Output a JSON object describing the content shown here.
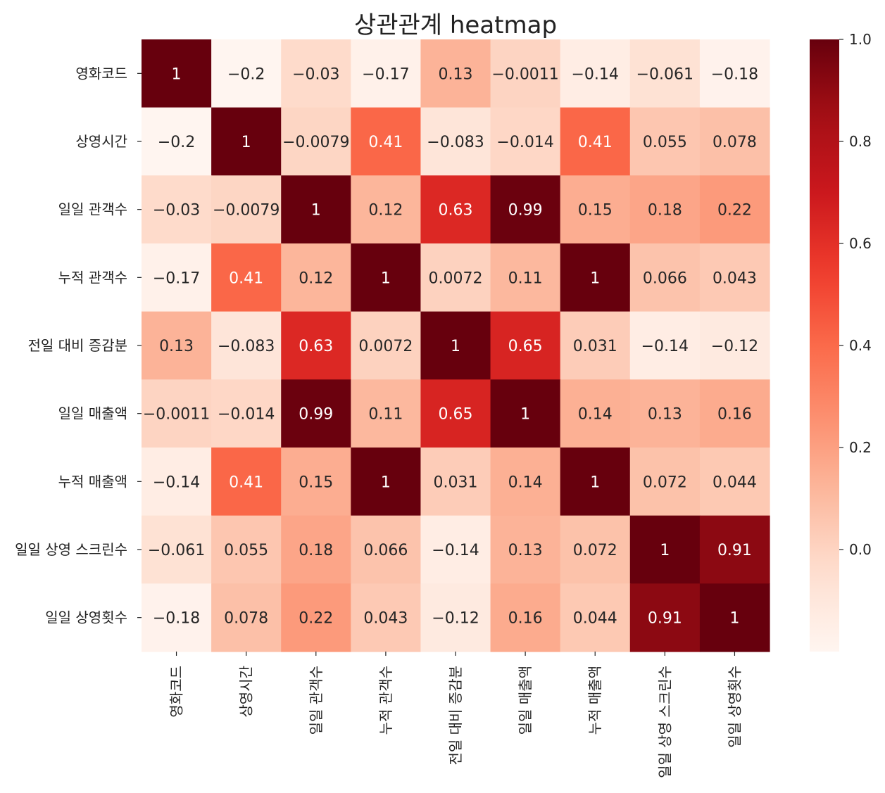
{
  "chart_data": {
    "type": "heatmap",
    "title": "상관관계 heatmap",
    "colormap": "Reds",
    "colorbar": {
      "vmin": -0.2,
      "vmax": 1.0,
      "ticks": [
        0.0,
        0.2,
        0.4,
        0.6,
        0.8,
        1.0
      ],
      "tick_labels": [
        "0.0",
        "0.2",
        "0.4",
        "0.6",
        "0.8",
        "1.0"
      ],
      "placement": "right"
    },
    "grid": false,
    "labels": [
      "영화코드",
      "상영시간",
      "일일 관객수",
      "누적 관객수",
      "전일 대비 증감분",
      "일일 매출액",
      "누적 매출액",
      "일일 상영 스크린수",
      "일일 상영횟수"
    ],
    "values": [
      [
        1,
        -0.2,
        -0.03,
        -0.17,
        0.13,
        -0.0011,
        -0.14,
        -0.061,
        -0.18
      ],
      [
        -0.2,
        1,
        -0.0079,
        0.41,
        -0.083,
        -0.014,
        0.41,
        0.055,
        0.078
      ],
      [
        -0.03,
        -0.0079,
        1,
        0.12,
        0.63,
        0.99,
        0.15,
        0.18,
        0.22
      ],
      [
        -0.17,
        0.41,
        0.12,
        1,
        0.0072,
        0.11,
        1,
        0.066,
        0.043
      ],
      [
        0.13,
        -0.083,
        0.63,
        0.0072,
        1,
        0.65,
        0.031,
        -0.14,
        -0.12
      ],
      [
        -0.0011,
        -0.014,
        0.99,
        0.11,
        0.65,
        1,
        0.14,
        0.13,
        0.16
      ],
      [
        -0.14,
        0.41,
        0.15,
        1,
        0.031,
        0.14,
        1,
        0.072,
        0.044
      ],
      [
        -0.061,
        0.055,
        0.18,
        0.066,
        -0.14,
        0.13,
        0.072,
        1,
        0.91
      ],
      [
        -0.18,
        0.078,
        0.22,
        0.043,
        -0.12,
        0.16,
        0.044,
        0.91,
        1
      ]
    ],
    "annotations": [
      [
        "1",
        "−0.2",
        "−0.03",
        "−0.17",
        "0.13",
        "−0.0011",
        "−0.14",
        "−0.061",
        "−0.18"
      ],
      [
        "−0.2",
        "1",
        "−0.0079",
        "0.41",
        "−0.083",
        "−0.014",
        "0.41",
        "0.055",
        "0.078"
      ],
      [
        "−0.03",
        "−0.0079",
        "1",
        "0.12",
        "0.63",
        "0.99",
        "0.15",
        "0.18",
        "0.22"
      ],
      [
        "−0.17",
        "0.41",
        "0.12",
        "1",
        "0.0072",
        "0.11",
        "1",
        "0.066",
        "0.043"
      ],
      [
        "0.13",
        "−0.083",
        "0.63",
        "0.0072",
        "1",
        "0.65",
        "0.031",
        "−0.14",
        "−0.12"
      ],
      [
        "−0.0011",
        "−0.014",
        "0.99",
        "0.11",
        "0.65",
        "1",
        "0.14",
        "0.13",
        "0.16"
      ],
      [
        "−0.14",
        "0.41",
        "0.15",
        "1",
        "0.031",
        "0.14",
        "1",
        "0.072",
        "0.044"
      ],
      [
        "−0.061",
        "0.055",
        "0.18",
        "0.066",
        "−0.14",
        "0.13",
        "0.072",
        "1",
        "0.91"
      ],
      [
        "−0.18",
        "0.078",
        "0.22",
        "0.043",
        "−0.12",
        "0.16",
        "0.044",
        "0.91",
        "1"
      ]
    ]
  }
}
